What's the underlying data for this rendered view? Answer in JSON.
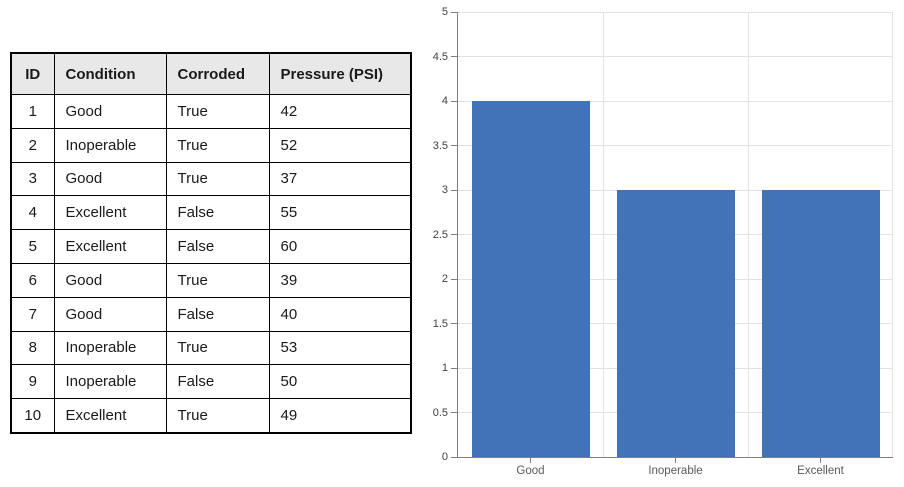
{
  "table": {
    "columns": [
      "ID",
      "Condition",
      "Corroded",
      "Pressure (PSI)"
    ],
    "rows": [
      [
        "1",
        "Good",
        "True",
        "42"
      ],
      [
        "2",
        "Inoperable",
        "True",
        "52"
      ],
      [
        "3",
        "Good",
        "True",
        "37"
      ],
      [
        "4",
        "Excellent",
        "False",
        "55"
      ],
      [
        "5",
        "Excellent",
        "False",
        "60"
      ],
      [
        "6",
        "Good",
        "True",
        "39"
      ],
      [
        "7",
        "Good",
        "False",
        "40"
      ],
      [
        "8",
        "Inoperable",
        "True",
        "53"
      ],
      [
        "9",
        "Inoperable",
        "False",
        "50"
      ],
      [
        "10",
        "Excellent",
        "True",
        "49"
      ]
    ],
    "header_bg": "#e8e8e8",
    "border_color": "#000000"
  },
  "chart_data": {
    "type": "bar",
    "categories": [
      "Good",
      "Inoperable",
      "Excellent"
    ],
    "values": [
      4,
      3,
      3
    ],
    "title": "",
    "xlabel": "",
    "ylabel": "",
    "ylim": [
      0,
      5
    ],
    "ytick_step": 0.5,
    "ytick_labels": [
      "0",
      "0.5",
      "1",
      "1.5",
      "2",
      "2.5",
      "3",
      "3.5",
      "4",
      "4.5",
      "5"
    ],
    "grid": true,
    "legend": false,
    "bar_color": "#4273b7",
    "gridline_color": "#e2e2e2",
    "axis_line_color": "#7f7f7f",
    "ytick_label_color": "#404040",
    "category_label_color": "#595959"
  }
}
